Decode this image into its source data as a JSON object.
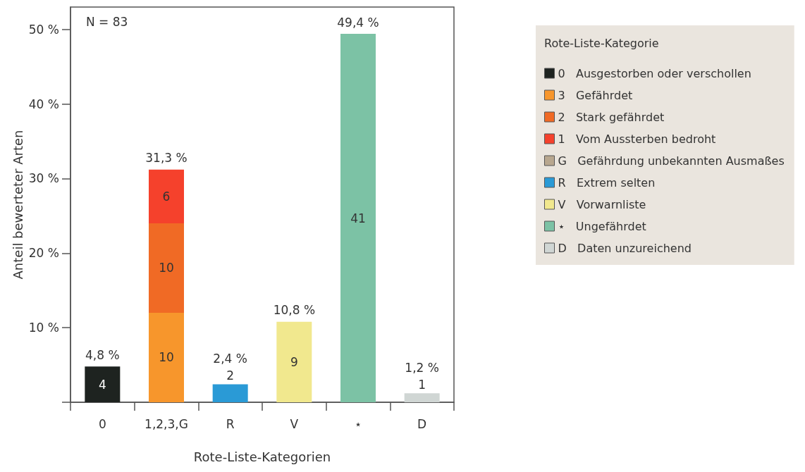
{
  "chart_data": {
    "type": "bar",
    "xlabel": "Rote-Liste-Kategorien",
    "ylabel": "Anteil bewerteter Arten",
    "legend_title": "Rote-Liste-Kategorie",
    "categories": [
      "0",
      "1,2,3,G",
      "R",
      "V",
      "⋆",
      "D"
    ],
    "stacked": true,
    "series": [
      {
        "name": "0   Ausgestorben oder verschollen",
        "color": "#1e2320",
        "values": [
          4.8,
          null,
          null,
          null,
          null,
          null
        ]
      },
      {
        "name": "3   Gefährdet",
        "color": "#f7962c",
        "values": [
          null,
          12.0,
          null,
          null,
          null,
          null
        ]
      },
      {
        "name": "2   Stark gefährdet",
        "color": "#f06a25",
        "values": [
          null,
          12.0,
          null,
          null,
          null,
          null
        ]
      },
      {
        "name": "1   Vom Aussterben bedroht",
        "color": "#f5412c",
        "values": [
          null,
          7.2,
          null,
          null,
          null,
          null
        ]
      },
      {
        "name": "G   Gefährdung unbekannten Ausmaßes",
        "color": "#b8a78f",
        "values": [
          null,
          null,
          null,
          null,
          null,
          null
        ]
      },
      {
        "name": "R   Extrem selten",
        "color": "#2a9ad6",
        "values": [
          null,
          null,
          2.4,
          null,
          null,
          null
        ]
      },
      {
        "name": "V   Vorwarnliste",
        "color": "#f1e88e",
        "values": [
          null,
          null,
          null,
          10.8,
          null,
          null
        ]
      },
      {
        "name": "⋆   Ungefährdet",
        "color": "#7cc2a5",
        "values": [
          null,
          null,
          null,
          null,
          49.4,
          null
        ]
      },
      {
        "name": "D   Daten unzureichend",
        "color": "#d0d6d4",
        "values": [
          null,
          null,
          null,
          null,
          null,
          1.2
        ]
      }
    ],
    "totals": [
      "4,8 %",
      "31,3 %",
      "2,4 %",
      "10,8 %",
      "49,4 %",
      "1,2 %"
    ],
    "ylim": [
      0,
      53
    ],
    "yticks": [
      {
        "value": 0,
        "label": null
      },
      {
        "value": 10,
        "label": "10 %"
      },
      {
        "value": 20,
        "label": "20 %"
      },
      {
        "value": 30,
        "label": "30 %"
      },
      {
        "value": 40,
        "label": "40 %"
      },
      {
        "value": 50,
        "label": "50 %"
      }
    ],
    "annotations": [
      "N = 83",
      "4",
      "10",
      "10",
      "6",
      "2",
      "9",
      "41",
      "1"
    ],
    "grid": false,
    "legend": "right"
  }
}
